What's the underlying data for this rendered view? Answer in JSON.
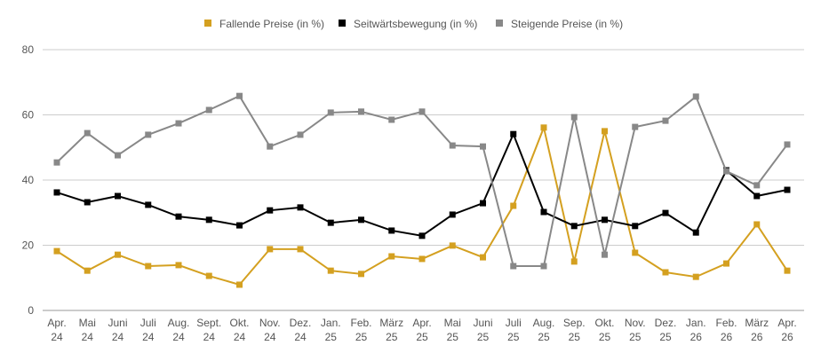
{
  "chart_data": {
    "type": "line",
    "title": "",
    "xlabel": "",
    "ylabel": "",
    "ylim": [
      0,
      80
    ],
    "yticks": [
      0,
      20,
      40,
      60,
      80
    ],
    "grid": true,
    "legend_position": "top-center",
    "categories": [
      [
        "Apr.",
        "24"
      ],
      [
        "Mai",
        "24"
      ],
      [
        "Juni",
        "24"
      ],
      [
        "Juli",
        "24"
      ],
      [
        "Aug.",
        "24"
      ],
      [
        "Sept.",
        "24"
      ],
      [
        "Okt.",
        "24"
      ],
      [
        "Nov.",
        "24"
      ],
      [
        "Dez.",
        "24"
      ],
      [
        "Jan.",
        "25"
      ],
      [
        "Feb.",
        "25"
      ],
      [
        "März",
        "25"
      ],
      [
        "Apr.",
        "25"
      ],
      [
        "Mai",
        "25"
      ],
      [
        "Juni",
        "25"
      ],
      [
        "Juli",
        "25"
      ],
      [
        "Aug.",
        "25"
      ],
      [
        "Sep.",
        "25"
      ],
      [
        "Okt.",
        "25"
      ],
      [
        "Nov.",
        "25"
      ],
      [
        "Dez.",
        "25"
      ],
      [
        "Jan.",
        "26"
      ],
      [
        "Feb.",
        "26"
      ],
      [
        "März",
        "26"
      ],
      [
        "Apr.",
        "26"
      ]
    ],
    "series": [
      {
        "name": "Fallende Preise (in %)",
        "color": "#D4A020",
        "values": [
          18.2,
          12.2,
          17.1,
          13.6,
          13.9,
          10.6,
          7.9,
          18.8,
          18.8,
          12.2,
          11.2,
          16.6,
          15.8,
          19.9,
          16.3,
          32.1,
          56.1,
          15.0,
          55.0,
          17.7,
          11.7,
          10.3,
          14.4,
          26.4,
          12.2
        ]
      },
      {
        "name": "Seitwärtsbewegung (in %)",
        "color": "#000000",
        "values": [
          36.2,
          33.2,
          35.1,
          32.4,
          28.8,
          27.8,
          26.1,
          30.7,
          31.6,
          26.9,
          27.8,
          24.5,
          22.9,
          29.4,
          32.9,
          54.1,
          30.2,
          25.9,
          27.8,
          25.9,
          29.9,
          23.9,
          43.0,
          35.1,
          37.0
        ]
      },
      {
        "name": "Steigende Preise (in %)",
        "color": "#888888",
        "values": [
          45.4,
          54.4,
          47.6,
          53.9,
          57.4,
          61.5,
          65.8,
          50.3,
          53.9,
          60.7,
          61.0,
          58.5,
          61.0,
          50.6,
          50.3,
          13.6,
          13.6,
          59.3,
          17.1,
          56.3,
          58.2,
          65.6,
          42.7,
          38.4,
          50.9
        ]
      }
    ]
  }
}
